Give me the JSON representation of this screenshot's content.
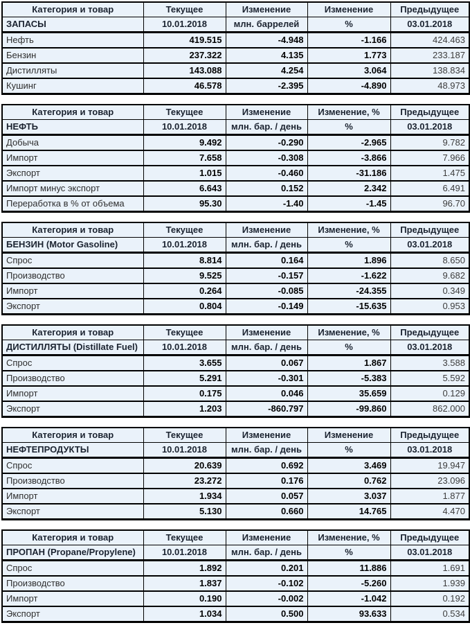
{
  "colors": {
    "cell_background": "#eaf2fa",
    "border": "#000000",
    "positive_value": "#00b000",
    "negative_value": "#e00000",
    "header_text": "#1b2330"
  },
  "tables": [
    {
      "title": "ЗАПАСЫ",
      "header": {
        "category": "Категория и товар",
        "current": "Текущее",
        "change": "Изменение",
        "change_pct": "Изменение",
        "previous": "Предыдущее"
      },
      "subheader": {
        "category": "ЗАПАСЫ",
        "current": "10.01.2018",
        "change": "млн. баррелей",
        "change_pct": "%",
        "previous": "03.01.2018"
      },
      "rows": [
        {
          "label": "Нефть",
          "current": "419.515",
          "change": "-4.948",
          "change_pct": "-1.166",
          "previous": "424.463"
        },
        {
          "label": "Бензин",
          "current": "237.322",
          "change": "4.135",
          "change_pct": "1.773",
          "previous": "233.187"
        },
        {
          "label": "Дистилляты",
          "current": "143.088",
          "change": "4.254",
          "change_pct": "3.064",
          "previous": "138.834"
        },
        {
          "label": "Кушинг",
          "current": "46.578",
          "change": "-2.395",
          "change_pct": "-4.890",
          "previous": "48.973"
        }
      ]
    },
    {
      "title": "НЕФТЬ",
      "header": {
        "category": "Категория и товар",
        "current": "Текущее",
        "change": "Изменение",
        "change_pct": "Изменение, %",
        "previous": "Предыдущее"
      },
      "subheader": {
        "category": "НЕФТЬ",
        "current": "10.01.2018",
        "change": "млн. бар. / день",
        "change_pct": "%",
        "previous": "03.01.2018"
      },
      "rows": [
        {
          "label": "Добыча",
          "current": "9.492",
          "change": "-0.290",
          "change_pct": "-2.965",
          "previous": "9.782"
        },
        {
          "label": "Импорт",
          "current": "7.658",
          "change": "-0.308",
          "change_pct": "-3.866",
          "previous": "7.966"
        },
        {
          "label": "Экспорт",
          "current": "1.015",
          "change": "-0.460",
          "change_pct": "-31.186",
          "previous": "1.475"
        },
        {
          "label": "Импорт минус экспорт",
          "current": "6.643",
          "change": "0.152",
          "change_pct": "2.342",
          "previous": "6.491"
        },
        {
          "label": "Переработка в % от объема",
          "current": "95.30",
          "change": "-1.40",
          "change_pct": "-1.45",
          "previous": "96.70"
        }
      ]
    },
    {
      "title": "БЕНЗИН (Motor Gasoline)",
      "header": {
        "category": "Категория и товар",
        "current": "Текущее",
        "change": "Изменение",
        "change_pct": "Изменение, %",
        "previous": "Предыдущее"
      },
      "subheader": {
        "category": "БЕНЗИН (Motor Gasoline)",
        "current": "10.01.2018",
        "change": "млн. бар. / день",
        "change_pct": "%",
        "previous": "03.01.2018"
      },
      "rows": [
        {
          "label": "Спрос",
          "current": "8.814",
          "change": "0.164",
          "change_pct": "1.896",
          "previous": "8.650"
        },
        {
          "label": "Производство",
          "current": "9.525",
          "change": "-0.157",
          "change_pct": "-1.622",
          "previous": "9.682"
        },
        {
          "label": "Импорт",
          "current": "0.264",
          "change": "-0.085",
          "change_pct": "-24.355",
          "previous": "0.349"
        },
        {
          "label": "Экспорт",
          "current": "0.804",
          "change": "-0.149",
          "change_pct": "-15.635",
          "previous": "0.953"
        }
      ]
    },
    {
      "title": "ДИСТИЛЛЯТЫ (Distillate Fuel)",
      "header": {
        "category": "Категория и товар",
        "current": "Текущее",
        "change": "Изменение",
        "change_pct": "Изменение, %",
        "previous": "Предыдущее"
      },
      "subheader": {
        "category": "ДИСТИЛЛЯТЫ (Distillate Fuel)",
        "current": "10.01.2018",
        "change": "млн. бар. / день",
        "change_pct": "%",
        "previous": "03.01.2018"
      },
      "rows": [
        {
          "label": "Спрос",
          "current": "3.655",
          "change": "0.067",
          "change_pct": "1.867",
          "previous": "3.588"
        },
        {
          "label": "Производство",
          "current": "5.291",
          "change": "-0.301",
          "change_pct": "-5.383",
          "previous": "5.592"
        },
        {
          "label": "Импорт",
          "current": "0.175",
          "change": "0.046",
          "change_pct": "35.659",
          "previous": "0.129"
        },
        {
          "label": "Экспорт",
          "current": "1.203",
          "change": "-860.797",
          "change_pct": "-99.860",
          "previous": "862.000"
        }
      ]
    },
    {
      "title": "НЕФТЕПРОДУКТЫ",
      "header": {
        "category": "Категория и товар",
        "current": "Текущее",
        "change": "Изменение",
        "change_pct": "Изменение",
        "previous": "Предыдущее"
      },
      "subheader": {
        "category": "НЕФТЕПРОДУКТЫ",
        "current": "10.01.2018",
        "change": "млн. бар. / день",
        "change_pct": "%",
        "previous": "03.01.2018"
      },
      "rows": [
        {
          "label": "Спрос",
          "current": "20.639",
          "change": "0.692",
          "change_pct": "3.469",
          "previous": "19.947"
        },
        {
          "label": "Производство",
          "current": "23.272",
          "change": "0.176",
          "change_pct": "0.762",
          "previous": "23.096"
        },
        {
          "label": "Импорт",
          "current": "1.934",
          "change": "0.057",
          "change_pct": "3.037",
          "previous": "1.877"
        },
        {
          "label": "Экспорт",
          "current": "5.130",
          "change": "0.660",
          "change_pct": "14.765",
          "previous": "4.470"
        }
      ]
    },
    {
      "title": "ПРОПАН (Propane/Propylene)",
      "header": {
        "category": "Категория и товар",
        "current": "Текущее",
        "change": "Изменение",
        "change_pct": "Изменение, %",
        "previous": "Предыдущее"
      },
      "subheader": {
        "category": "ПРОПАН (Propane/Propylene)",
        "current": "10.01.2018",
        "change": "млн. бар. / день",
        "change_pct": "%",
        "previous": "03.01.2018"
      },
      "rows": [
        {
          "label": "Спрос",
          "current": "1.892",
          "change": "0.201",
          "change_pct": "11.886",
          "previous": "1.691"
        },
        {
          "label": "Производство",
          "current": "1.837",
          "change": "-0.102",
          "change_pct": "-5.260",
          "previous": "1.939"
        },
        {
          "label": "Импорт",
          "current": "0.190",
          "change": "-0.002",
          "change_pct": "-1.042",
          "previous": "0.192"
        },
        {
          "label": "Экспорт",
          "current": "1.034",
          "change": "0.500",
          "change_pct": "93.633",
          "previous": "0.534"
        }
      ]
    }
  ]
}
